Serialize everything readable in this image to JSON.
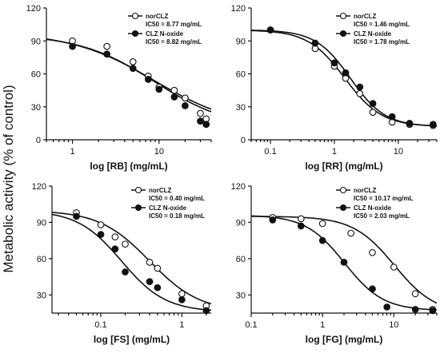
{
  "figure": {
    "ylabel": "Metabolic activity (% of control)"
  },
  "chart_data": [
    {
      "type": "scatter",
      "xlabel": "log [RB]  (mg/mL)",
      "ylabel": "Metabolic activity (% of control)",
      "xscale": "log",
      "xlim": [
        0.5,
        40
      ],
      "xticks": [
        1,
        10
      ],
      "ylim": [
        0,
        120
      ],
      "yticks": [
        0,
        30,
        60,
        90,
        120
      ],
      "legend_position": "top-right",
      "series": [
        {
          "name": "norCLZ",
          "ic50_label": "IC50 = 8.77 mg/mL",
          "marker": "open-circle",
          "ic50": 8.77,
          "top": 98,
          "bottom": 10,
          "hill": 0.9,
          "x": [
            1,
            2.5,
            5,
            7.5,
            10,
            15,
            20,
            30,
            35
          ],
          "y": [
            90,
            85,
            71,
            58,
            48,
            45,
            38,
            24,
            19
          ]
        },
        {
          "name": "CLZ N-oxide",
          "ic50_label": "IC50 = 8.82 mg/mL",
          "marker": "filled-circle",
          "ic50": 8.82,
          "top": 96,
          "bottom": 10,
          "hill": 1.0,
          "x": [
            1,
            2.5,
            5,
            7.5,
            10,
            15,
            20,
            30,
            35
          ],
          "y": [
            85,
            78,
            65,
            55,
            46,
            39,
            31,
            17,
            14
          ]
        }
      ]
    },
    {
      "type": "scatter",
      "xlabel": "log [RR]  (mg/mL)",
      "ylabel": "Metabolic activity (% of control)",
      "xscale": "log",
      "xlim": [
        0.05,
        40
      ],
      "xticks": [
        0.1,
        1,
        10
      ],
      "ylim": [
        0,
        120
      ],
      "yticks": [
        0,
        30,
        60,
        90,
        120
      ],
      "legend_position": "top-right",
      "series": [
        {
          "name": "norCLZ",
          "ic50_label": "IC50 = 1.46 mg/mL",
          "marker": "open-circle",
          "ic50": 1.46,
          "top": 100,
          "bottom": 12,
          "hill": 1.5,
          "x": [
            0.1,
            0.5,
            1,
            1.5,
            2.5,
            4,
            8,
            15,
            35
          ],
          "y": [
            100,
            83,
            67,
            56,
            42,
            25,
            16,
            14,
            13
          ]
        },
        {
          "name": "CLZ N-oxide",
          "ic50_label": "IC50 = 1.78 mg/mL",
          "marker": "filled-circle",
          "ic50": 1.78,
          "top": 100,
          "bottom": 12,
          "hill": 1.6,
          "x": [
            0.1,
            0.5,
            1,
            1.5,
            2.5,
            4,
            8,
            15,
            35
          ],
          "y": [
            100,
            88,
            70,
            61,
            48,
            33,
            21,
            15,
            14
          ]
        }
      ]
    },
    {
      "type": "scatter",
      "xlabel": "log [FS]  (mg/mL)",
      "ylabel": "Metabolic activity (% of control)",
      "xscale": "log",
      "xlim": [
        0.025,
        2.3
      ],
      "xticks": [
        0.1,
        1
      ],
      "ylim": [
        15,
        120
      ],
      "yticks": [
        30,
        60,
        90,
        120
      ],
      "legend_position": "top-right",
      "series": [
        {
          "name": "norCLZ",
          "ic50_label": "IC50 = 0.40 mg/mL",
          "marker": "open-circle",
          "ic50": 0.4,
          "top": 100,
          "bottom": 16,
          "hill": 1.4,
          "x": [
            0.05,
            0.1,
            0.15,
            0.2,
            0.4,
            0.5,
            1,
            2
          ],
          "y": [
            98,
            88,
            78,
            72,
            57,
            52,
            31,
            21
          ]
        },
        {
          "name": "CLZ N-oxide",
          "ic50_label": "IC50 = 0.18 mg/mL",
          "marker": "filled-circle",
          "ic50": 0.18,
          "top": 100,
          "bottom": 16,
          "hill": 1.6,
          "x": [
            0.05,
            0.1,
            0.15,
            0.2,
            0.4,
            0.5,
            1,
            2
          ],
          "y": [
            95,
            80,
            68,
            49,
            41,
            36,
            26,
            17
          ]
        }
      ]
    },
    {
      "type": "scatter",
      "xlabel": "log [FG]  (mg/mL)",
      "ylabel": "Metabolic activity (% of control)",
      "xscale": "log",
      "xlim": [
        0.1,
        40
      ],
      "xticks": [
        0.1,
        1,
        10
      ],
      "ylim": [
        15,
        120
      ],
      "yticks": [
        30,
        60,
        90,
        120
      ],
      "legend_position": "top-right",
      "series": [
        {
          "name": "norCLZ",
          "ic50_label": "IC50 = 10.17 mg/mL",
          "marker": "open-circle",
          "ic50": 10.17,
          "top": 95,
          "bottom": 14,
          "hill": 1.5,
          "x": [
            0.2,
            0.5,
            1,
            2.5,
            5,
            10,
            20,
            35
          ],
          "y": [
            94,
            93,
            89,
            81,
            65,
            53,
            31,
            18
          ]
        },
        {
          "name": "CLZ N-oxide",
          "ic50_label": "IC50 = 2.03 mg/mL",
          "marker": "filled-circle",
          "ic50": 2.03,
          "top": 96,
          "bottom": 17,
          "hill": 1.6,
          "x": [
            0.2,
            0.5,
            1,
            2,
            5,
            8,
            20,
            35
          ],
          "y": [
            92,
            87,
            75,
            57,
            35,
            20,
            18,
            17
          ]
        }
      ]
    }
  ]
}
